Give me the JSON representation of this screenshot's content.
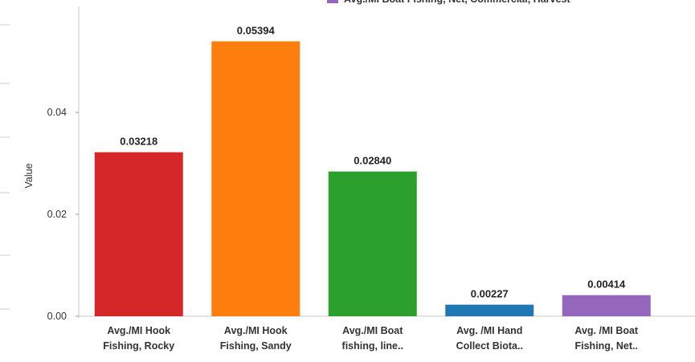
{
  "chart_data": {
    "type": "bar",
    "categories": [
      [
        "Avg./MI Hook",
        "Fishing, Rocky"
      ],
      [
        "Avg./MI Hook",
        "Fishing, Sandy"
      ],
      [
        "Avg./MI Boat",
        "fishing, line.."
      ],
      [
        "Avg. /MI Hand",
        "Collect Biota.."
      ],
      [
        "Avg. /MI Boat",
        "Fishing, Net.."
      ]
    ],
    "values": [
      0.03218,
      0.05394,
      0.0284,
      0.00227,
      0.00414
    ],
    "value_labels": [
      "0.03218",
      "0.05394",
      "0.02840",
      "0.00227",
      "0.00414"
    ],
    "colors": [
      "#d62728",
      "#ff7f0e",
      "#2ca02c",
      "#1f77b4",
      "#9467bd"
    ],
    "ylabel": "Value",
    "yticks": [
      0.0,
      0.02,
      0.04
    ],
    "ytick_labels": [
      "0.00",
      "0.02",
      "0.04"
    ],
    "ylim": [
      0,
      0.06
    ],
    "grid": false,
    "legend": {
      "placement": "top-right",
      "items": [
        {
          "label": "Avg./MI Boat Fishing, Net, Commercial, Harvest",
          "color": "#9467bd"
        }
      ]
    }
  }
}
